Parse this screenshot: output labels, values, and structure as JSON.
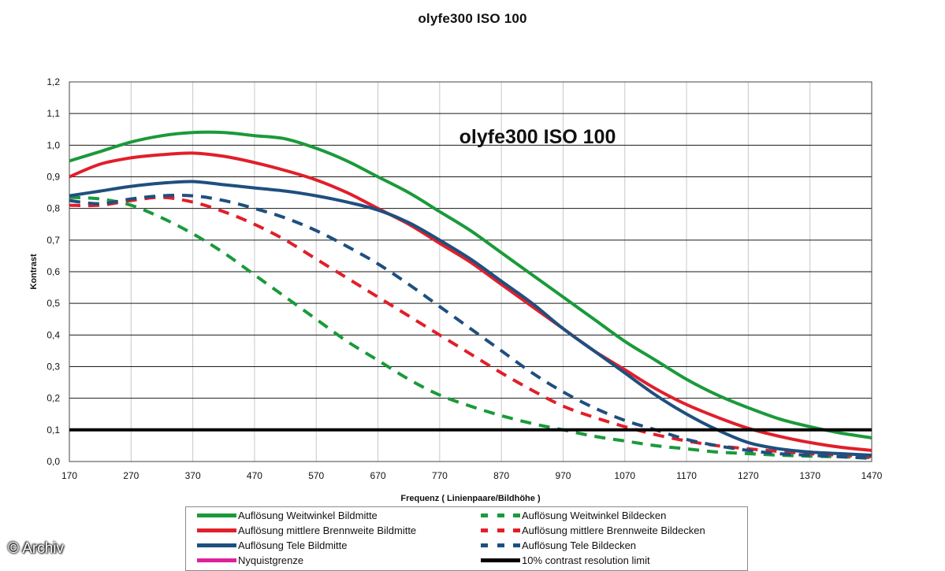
{
  "title": "olyfe300 ISO 100",
  "watermark": "© Archiv",
  "chart_data": {
    "type": "line",
    "title": "olyfe300 ISO 100",
    "inner_title": "olyfe300 ISO 100",
    "xlabel": "Frequenz ( Linienpaare/Bildhöhe )",
    "ylabel": "Kontrast",
    "xlim": [
      170,
      1470
    ],
    "ylim": [
      0.0,
      1.2
    ],
    "xticks": [
      "170",
      "270",
      "370",
      "470",
      "570",
      "670",
      "770",
      "870",
      "970",
      "1070",
      "1170",
      "1270",
      "1370",
      "1470"
    ],
    "yticks": [
      "0,0",
      "0,1",
      "0,2",
      "0,3",
      "0,4",
      "0,5",
      "0,6",
      "0,7",
      "0,8",
      "0,9",
      "1,0",
      "1,1",
      "1,2"
    ],
    "grid": "horizontal",
    "legend_position": "bottom",
    "colors": {
      "green": "#1a9a3a",
      "red": "#e01f2a",
      "blue": "#1f4f7f",
      "magenta": "#e0209a",
      "black": "#000000"
    },
    "series": [
      {
        "name": "Auflösung Weitwinkel Bildmitte",
        "color": "#1a9a3a",
        "style": "solid",
        "x": [
          170,
          220,
          270,
          320,
          370,
          420,
          470,
          520,
          570,
          620,
          670,
          720,
          770,
          820,
          870,
          920,
          970,
          1020,
          1070,
          1120,
          1170,
          1220,
          1270,
          1320,
          1370,
          1420,
          1470
        ],
        "y": [
          0.95,
          0.98,
          1.01,
          1.03,
          1.04,
          1.04,
          1.03,
          1.02,
          0.99,
          0.95,
          0.9,
          0.85,
          0.79,
          0.73,
          0.66,
          0.59,
          0.52,
          0.45,
          0.38,
          0.32,
          0.26,
          0.21,
          0.17,
          0.135,
          0.11,
          0.09,
          0.075
        ]
      },
      {
        "name": "Auflösung mittlere Brennweite Bildmitte",
        "color": "#e01f2a",
        "style": "solid",
        "x": [
          170,
          220,
          270,
          320,
          370,
          420,
          470,
          520,
          570,
          620,
          670,
          720,
          770,
          820,
          870,
          920,
          970,
          1020,
          1070,
          1120,
          1170,
          1220,
          1270,
          1320,
          1370,
          1420,
          1470
        ],
        "y": [
          0.9,
          0.94,
          0.96,
          0.97,
          0.975,
          0.965,
          0.945,
          0.92,
          0.89,
          0.85,
          0.8,
          0.75,
          0.69,
          0.63,
          0.56,
          0.49,
          0.42,
          0.35,
          0.29,
          0.23,
          0.18,
          0.14,
          0.105,
          0.08,
          0.06,
          0.045,
          0.035
        ]
      },
      {
        "name": "Auflösung Tele Bildmitte",
        "color": "#1f4f7f",
        "style": "solid",
        "x": [
          170,
          220,
          270,
          320,
          370,
          420,
          470,
          520,
          570,
          620,
          670,
          720,
          770,
          820,
          870,
          920,
          970,
          1020,
          1070,
          1120,
          1170,
          1220,
          1270,
          1320,
          1370,
          1420,
          1470
        ],
        "y": [
          0.84,
          0.855,
          0.87,
          0.88,
          0.885,
          0.875,
          0.865,
          0.855,
          0.84,
          0.82,
          0.795,
          0.755,
          0.7,
          0.64,
          0.57,
          0.5,
          0.42,
          0.35,
          0.28,
          0.21,
          0.15,
          0.1,
          0.06,
          0.04,
          0.03,
          0.025,
          0.02
        ]
      },
      {
        "name": "Auflösung Weitwinkel Bildecken",
        "color": "#1a9a3a",
        "style": "dashed",
        "x": [
          170,
          220,
          270,
          320,
          370,
          420,
          470,
          520,
          570,
          620,
          670,
          720,
          770,
          820,
          870,
          920,
          970,
          1020,
          1070,
          1120,
          1170,
          1220,
          1270,
          1320,
          1370,
          1420,
          1470
        ],
        "y": [
          0.835,
          0.83,
          0.81,
          0.77,
          0.72,
          0.66,
          0.59,
          0.52,
          0.45,
          0.38,
          0.32,
          0.26,
          0.21,
          0.175,
          0.145,
          0.12,
          0.1,
          0.08,
          0.065,
          0.05,
          0.04,
          0.03,
          0.025,
          0.02,
          0.017,
          0.015,
          0.012
        ]
      },
      {
        "name": "Auflösung mittlere Brennweite Bildecken",
        "color": "#e01f2a",
        "style": "dashed",
        "x": [
          170,
          220,
          270,
          320,
          370,
          420,
          470,
          520,
          570,
          620,
          670,
          720,
          770,
          820,
          870,
          920,
          970,
          1020,
          1070,
          1120,
          1170,
          1220,
          1270,
          1320,
          1370,
          1420,
          1470
        ],
        "y": [
          0.81,
          0.81,
          0.825,
          0.835,
          0.82,
          0.79,
          0.75,
          0.7,
          0.64,
          0.58,
          0.52,
          0.46,
          0.4,
          0.34,
          0.28,
          0.225,
          0.175,
          0.14,
          0.11,
          0.085,
          0.065,
          0.05,
          0.04,
          0.032,
          0.025,
          0.02,
          0.015
        ]
      },
      {
        "name": "Auflösung Tele Bildecken",
        "color": "#1f4f7f",
        "style": "dashed",
        "x": [
          170,
          220,
          270,
          320,
          370,
          420,
          470,
          520,
          570,
          620,
          670,
          720,
          770,
          820,
          870,
          920,
          970,
          1020,
          1070,
          1120,
          1170,
          1220,
          1270,
          1320,
          1370,
          1420,
          1470
        ],
        "y": [
          0.825,
          0.815,
          0.83,
          0.84,
          0.84,
          0.825,
          0.8,
          0.77,
          0.73,
          0.68,
          0.625,
          0.56,
          0.49,
          0.42,
          0.35,
          0.28,
          0.22,
          0.17,
          0.13,
          0.1,
          0.07,
          0.05,
          0.035,
          0.025,
          0.02,
          0.015,
          0.01
        ]
      },
      {
        "name": "Nyquistgrenze",
        "color": "#e0209a",
        "style": "solid",
        "x": [],
        "y": []
      },
      {
        "name": "10% contrast resolution limit",
        "color": "#000000",
        "style": "solid",
        "x": [
          170,
          1470
        ],
        "y": [
          0.1,
          0.1
        ]
      }
    ]
  },
  "legend": {
    "items": [
      {
        "label": "Auflösung Weitwinkel Bildmitte",
        "color": "#1a9a3a",
        "style": "solid"
      },
      {
        "label": "Auflösung Weitwinkel Bildecken",
        "color": "#1a9a3a",
        "style": "dashed"
      },
      {
        "label": "Auflösung mittlere Brennweite Bildmitte",
        "color": "#e01f2a",
        "style": "solid"
      },
      {
        "label": "Auflösung mittlere Brennweite Bildecken",
        "color": "#e01f2a",
        "style": "dashed"
      },
      {
        "label": "Auflösung Tele Bildmitte",
        "color": "#1f4f7f",
        "style": "solid"
      },
      {
        "label": "Auflösung Tele Bildecken",
        "color": "#1f4f7f",
        "style": "dashed"
      },
      {
        "label": "Nyquistgrenze",
        "color": "#e0209a",
        "style": "solid"
      },
      {
        "label": "10% contrast resolution limit",
        "color": "#000000",
        "style": "solid"
      }
    ]
  }
}
